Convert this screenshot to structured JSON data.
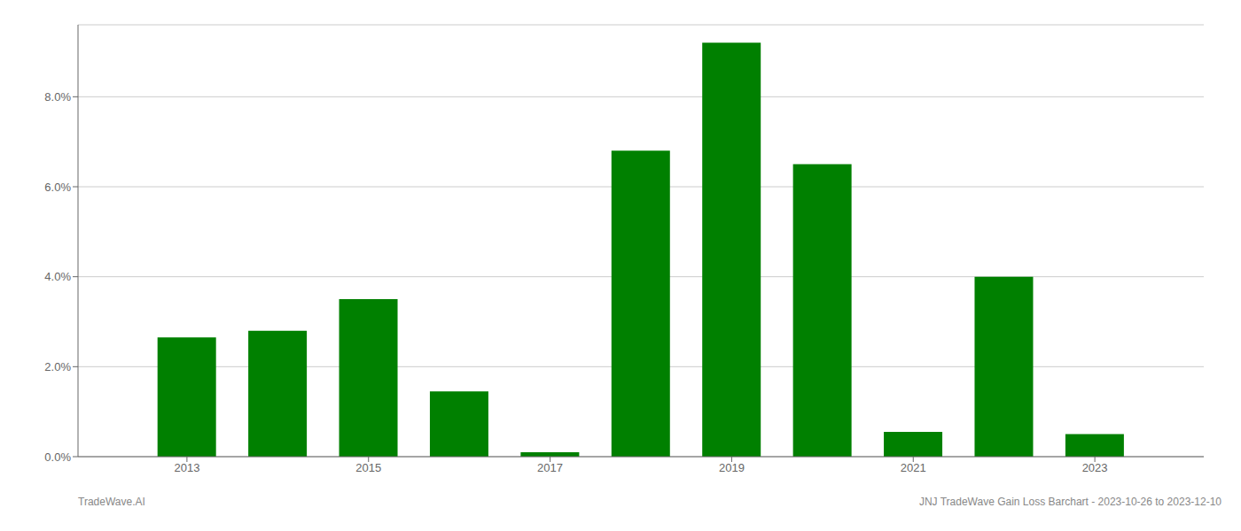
{
  "chart_data": {
    "type": "bar",
    "x": [
      2013,
      2014,
      2015,
      2016,
      2017,
      2018,
      2019,
      2020,
      2021,
      2022,
      2023
    ],
    "values": [
      0.0265,
      0.028,
      0.035,
      0.0145,
      0.001,
      0.068,
      0.092,
      0.065,
      0.0055,
      0.04,
      0.005
    ],
    "color": "#008000",
    "xlim": [
      2011.8,
      2024.2
    ],
    "xticks": [
      2013,
      2015,
      2017,
      2019,
      2021,
      2023
    ],
    "ylim": [
      0,
      0.096
    ],
    "yticks": [
      {
        "value": 0.0,
        "label": "0.0%"
      },
      {
        "value": 0.02,
        "label": "2.0%"
      },
      {
        "value": 0.04,
        "label": "4.0%"
      },
      {
        "value": 0.06,
        "label": "6.0%"
      },
      {
        "value": 0.08,
        "label": "8.0%"
      }
    ],
    "grid": true,
    "annotations": [
      "TradeWave.AI",
      "JNJ TradeWave Gain Loss Barchart - 2023-10-26 to 2023-12-10"
    ]
  }
}
